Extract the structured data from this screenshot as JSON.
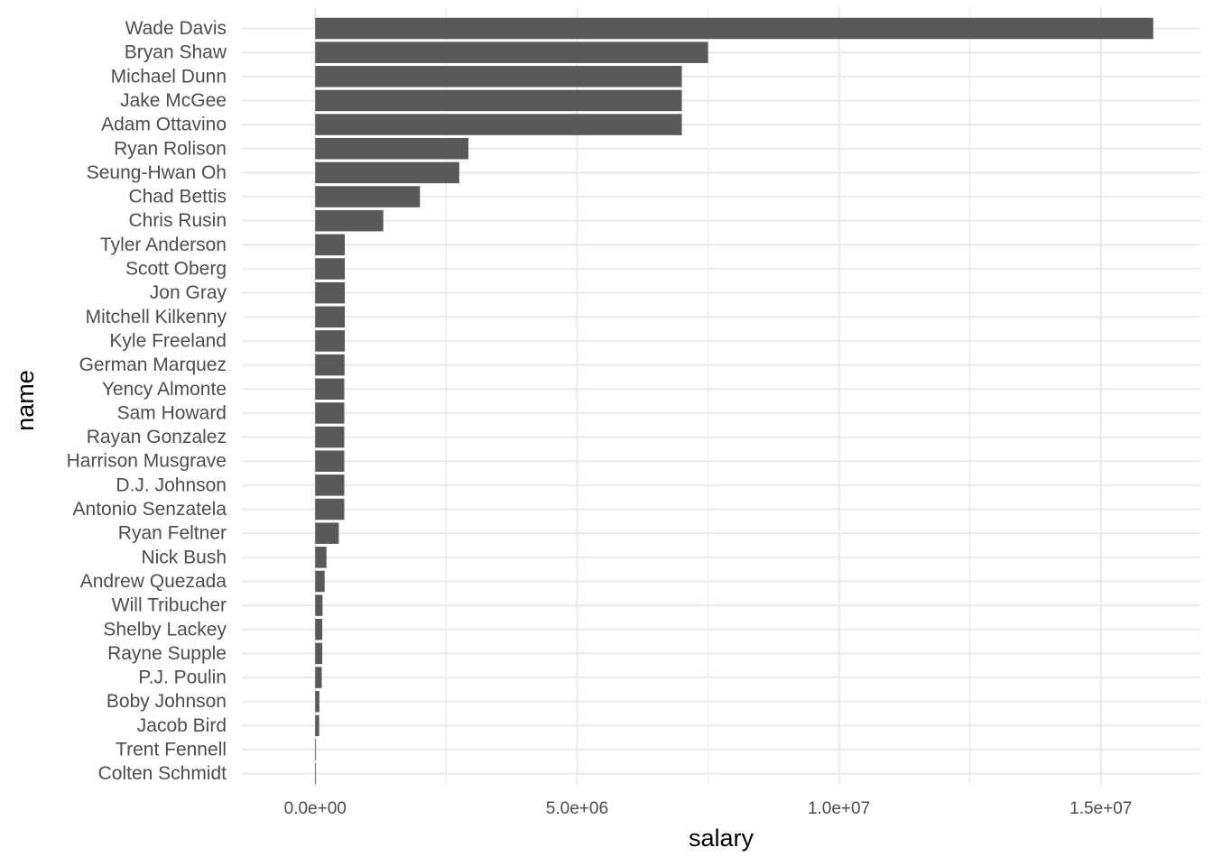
{
  "chart_data": {
    "type": "bar",
    "orientation": "horizontal",
    "title": "",
    "xlabel": "salary",
    "ylabel": "name",
    "grid": true,
    "xlim": [
      -1400000,
      16900000
    ],
    "x_ticks": [
      0,
      5000000,
      10000000,
      15000000
    ],
    "x_tick_labels": [
      "0.0e+00",
      "5.0e+06",
      "1.0e+07",
      "1.5e+07"
    ],
    "categories": [
      "Wade Davis",
      "Bryan Shaw",
      "Michael Dunn",
      "Jake McGee",
      "Adam Ottavino",
      "Ryan Rolison",
      "Seung-Hwan Oh",
      "Chad Bettis",
      "Chris Rusin",
      "Tyler Anderson",
      "Scott Oberg",
      "Jon Gray",
      "Mitchell Kilkenny",
      "Kyle Freeland",
      "German Marquez",
      "Yency Almonte",
      "Sam Howard",
      "Rayan Gonzalez",
      "Harrison Musgrave",
      "D.J. Johnson",
      "Antonio Senzatela",
      "Ryan Feltner",
      "Nick Bush",
      "Andrew Quezada",
      "Will Tribucher",
      "Shelby Lackey",
      "Rayne Supple",
      "P.J. Poulin",
      "Boby Johnson",
      "Jacob Bird",
      "Trent Fennell",
      "Colten Schmidt"
    ],
    "values": [
      16000000,
      7500000,
      7000000,
      7000000,
      7000000,
      2925000,
      2750000,
      2000000,
      1300000,
      565000,
      565000,
      565000,
      565000,
      565000,
      560000,
      555000,
      555000,
      555000,
      555000,
      555000,
      555000,
      450000,
      215000,
      180000,
      140000,
      135000,
      135000,
      125000,
      80000,
      75000,
      10000,
      10000
    ],
    "bar_color": "#595959",
    "grid_color": "#ebebeb"
  }
}
